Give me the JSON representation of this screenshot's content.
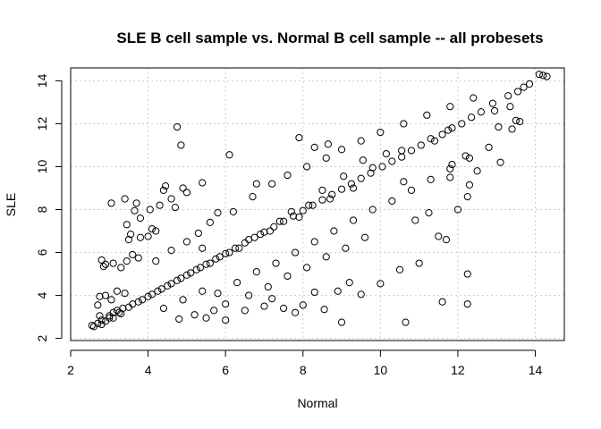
{
  "chart_data": {
    "type": "scatter",
    "title": "SLE B cell sample vs. Normal B cell sample -- all probesets",
    "xlabel": "Normal",
    "ylabel": "SLE",
    "xlim": [
      2.0,
      14.75
    ],
    "ylim": [
      1.9,
      14.6
    ],
    "xticks": [
      2,
      4,
      6,
      8,
      10,
      12,
      14
    ],
    "yticks": [
      2,
      4,
      6,
      8,
      10,
      12,
      14
    ],
    "grid": true,
    "marker": "open-circle",
    "point_color": "#000000",
    "grid_color": "#cccccc",
    "series": [
      {
        "points": [
          [
            2.55,
            2.6
          ],
          [
            2.6,
            2.55
          ],
          [
            2.7,
            2.7
          ],
          [
            2.8,
            2.65
          ],
          [
            2.75,
            3.05
          ],
          [
            2.9,
            2.8
          ],
          [
            3.0,
            3.05
          ],
          [
            3.1,
            2.95
          ],
          [
            3.2,
            3.3
          ],
          [
            3.3,
            3.15
          ],
          [
            2.7,
            3.55
          ],
          [
            2.75,
            3.95
          ],
          [
            2.9,
            4.0
          ],
          [
            3.05,
            3.8
          ],
          [
            3.2,
            4.2
          ],
          [
            3.4,
            4.1
          ],
          [
            3.3,
            5.3
          ],
          [
            3.45,
            5.6
          ],
          [
            3.1,
            5.5
          ],
          [
            2.9,
            5.45
          ],
          [
            2.8,
            5.65
          ],
          [
            2.85,
            5.35
          ],
          [
            3.6,
            5.9
          ],
          [
            3.75,
            5.75
          ],
          [
            3.5,
            6.6
          ],
          [
            3.55,
            6.85
          ],
          [
            3.8,
            6.7
          ],
          [
            4.0,
            6.75
          ],
          [
            4.1,
            7.1
          ],
          [
            4.2,
            7.0
          ],
          [
            3.05,
            8.3
          ],
          [
            3.45,
            7.3
          ],
          [
            3.65,
            7.95
          ],
          [
            3.8,
            7.6
          ],
          [
            4.05,
            8.0
          ],
          [
            4.3,
            8.2
          ],
          [
            4.45,
            9.1
          ],
          [
            4.4,
            8.9
          ],
          [
            4.9,
            9.0
          ],
          [
            5.0,
            8.8
          ],
          [
            5.4,
            9.25
          ],
          [
            4.75,
            11.85
          ],
          [
            4.85,
            11.0
          ],
          [
            5.8,
            7.85
          ],
          [
            6.1,
            10.55
          ],
          [
            6.8,
            9.2
          ],
          [
            7.9,
            11.35
          ],
          [
            8.3,
            10.9
          ],
          [
            8.65,
            11.05
          ],
          [
            3.4,
            8.5
          ],
          [
            3.7,
            8.3
          ],
          [
            4.6,
            8.5
          ],
          [
            4.7,
            8.1
          ],
          [
            5.7,
            3.3
          ],
          [
            5.2,
            3.1
          ],
          [
            4.8,
            2.9
          ],
          [
            5.5,
            2.95
          ],
          [
            6.0,
            2.85
          ],
          [
            6.5,
            3.3
          ],
          [
            7.0,
            3.5
          ],
          [
            7.5,
            3.4
          ],
          [
            7.2,
            3.85
          ],
          [
            7.8,
            3.2
          ],
          [
            8.0,
            3.55
          ],
          [
            8.55,
            3.35
          ],
          [
            8.3,
            4.15
          ],
          [
            8.9,
            4.2
          ],
          [
            9.0,
            2.75
          ],
          [
            9.5,
            4.05
          ],
          [
            9.2,
            4.6
          ],
          [
            10.0,
            4.55
          ],
          [
            10.65,
            2.75
          ],
          [
            10.5,
            5.2
          ],
          [
            11.0,
            5.5
          ],
          [
            11.6,
            3.7
          ],
          [
            12.25,
            3.6
          ],
          [
            12.25,
            5.0
          ],
          [
            11.5,
            6.75
          ],
          [
            10.9,
            7.5
          ],
          [
            11.7,
            6.6
          ],
          [
            11.25,
            7.85
          ],
          [
            12.0,
            8.0
          ],
          [
            11.8,
            9.5
          ],
          [
            12.25,
            8.6
          ],
          [
            12.3,
            9.15
          ],
          [
            12.5,
            9.8
          ],
          [
            12.2,
            10.5
          ],
          [
            11.85,
            10.1
          ],
          [
            13.1,
            10.2
          ],
          [
            13.4,
            11.75
          ],
          [
            13.05,
            11.85
          ],
          [
            13.6,
            12.1
          ],
          [
            13.35,
            12.8
          ],
          [
            12.95,
            12.6
          ],
          [
            11.75,
            11.7
          ],
          [
            11.4,
            11.2
          ],
          [
            10.55,
            10.75
          ],
          [
            10.6,
            9.3
          ],
          [
            10.15,
            10.6
          ],
          [
            9.8,
            9.95
          ],
          [
            9.55,
            10.3
          ],
          [
            9.3,
            9.0
          ],
          [
            9.05,
            9.55
          ],
          [
            8.7,
            8.5
          ],
          [
            8.5,
            8.9
          ],
          [
            8.15,
            8.2
          ],
          [
            7.9,
            7.65
          ],
          [
            7.7,
            7.9
          ],
          [
            7.4,
            7.45
          ],
          [
            7.15,
            7.0
          ],
          [
            6.9,
            6.85
          ],
          [
            6.6,
            6.6
          ],
          [
            6.35,
            6.2
          ],
          [
            6.1,
            6.0
          ],
          [
            5.85,
            5.8
          ],
          [
            5.6,
            5.5
          ],
          [
            5.35,
            5.3
          ],
          [
            5.1,
            5.05
          ],
          [
            4.85,
            4.8
          ],
          [
            4.6,
            4.55
          ],
          [
            4.35,
            4.3
          ],
          [
            4.1,
            4.05
          ],
          [
            3.85,
            3.8
          ],
          [
            3.6,
            3.6
          ],
          [
            3.35,
            3.4
          ],
          [
            3.1,
            3.2
          ],
          [
            13.7,
            13.7
          ],
          [
            13.85,
            13.85
          ],
          [
            13.55,
            13.5
          ],
          [
            13.3,
            13.3
          ],
          [
            14.2,
            14.25
          ],
          [
            14.3,
            14.2
          ],
          [
            14.1,
            14.3
          ],
          [
            13.5,
            12.15
          ],
          [
            12.9,
            12.95
          ],
          [
            12.6,
            12.55
          ],
          [
            12.35,
            12.3
          ],
          [
            12.1,
            12.0
          ],
          [
            11.85,
            11.8
          ],
          [
            11.6,
            11.5
          ],
          [
            11.3,
            11.3
          ],
          [
            11.05,
            11.0
          ],
          [
            10.8,
            10.75
          ],
          [
            10.55,
            10.45
          ],
          [
            10.3,
            10.25
          ],
          [
            10.05,
            10.0
          ],
          [
            9.75,
            9.7
          ],
          [
            9.5,
            9.45
          ],
          [
            9.25,
            9.2
          ],
          [
            9.0,
            8.95
          ],
          [
            8.75,
            8.7
          ],
          [
            8.5,
            8.45
          ],
          [
            8.25,
            8.2
          ],
          [
            8.0,
            7.95
          ],
          [
            7.75,
            7.7
          ],
          [
            7.5,
            7.45
          ],
          [
            7.25,
            7.2
          ],
          [
            7.0,
            6.95
          ],
          [
            6.75,
            6.7
          ],
          [
            6.5,
            6.45
          ],
          [
            6.25,
            6.2
          ],
          [
            6.0,
            5.95
          ],
          [
            5.75,
            5.7
          ],
          [
            5.5,
            5.45
          ],
          [
            5.25,
            5.2
          ],
          [
            5.0,
            4.95
          ],
          [
            4.75,
            4.7
          ],
          [
            4.5,
            4.45
          ],
          [
            4.25,
            4.2
          ],
          [
            4.0,
            3.95
          ],
          [
            3.75,
            3.7
          ],
          [
            3.5,
            3.45
          ],
          [
            3.25,
            3.2
          ],
          [
            3.0,
            2.95
          ],
          [
            2.8,
            2.85
          ],
          [
            5.3,
            6.9
          ],
          [
            5.6,
            7.4
          ],
          [
            6.2,
            7.9
          ],
          [
            6.7,
            8.6
          ],
          [
            7.2,
            9.2
          ],
          [
            7.6,
            9.6
          ],
          [
            8.1,
            10.0
          ],
          [
            8.6,
            10.4
          ],
          [
            9.0,
            10.8
          ],
          [
            9.5,
            11.2
          ],
          [
            10.0,
            11.6
          ],
          [
            10.6,
            12.0
          ],
          [
            11.2,
            12.4
          ],
          [
            11.8,
            12.8
          ],
          [
            12.4,
            13.2
          ],
          [
            5.8,
            4.1
          ],
          [
            6.3,
            4.6
          ],
          [
            6.8,
            5.1
          ],
          [
            7.3,
            5.5
          ],
          [
            7.8,
            6.0
          ],
          [
            8.3,
            6.5
          ],
          [
            8.8,
            7.0
          ],
          [
            9.3,
            7.5
          ],
          [
            9.8,
            8.0
          ],
          [
            10.3,
            8.4
          ],
          [
            10.8,
            8.9
          ],
          [
            11.3,
            9.4
          ],
          [
            11.8,
            9.9
          ],
          [
            12.3,
            10.4
          ],
          [
            12.8,
            10.9
          ],
          [
            4.2,
            5.6
          ],
          [
            4.6,
            6.1
          ],
          [
            5.0,
            6.5
          ],
          [
            5.4,
            6.2
          ],
          [
            4.4,
            3.4
          ],
          [
            4.9,
            3.8
          ],
          [
            5.4,
            4.2
          ],
          [
            6.0,
            3.6
          ],
          [
            6.6,
            4.0
          ],
          [
            7.1,
            4.4
          ],
          [
            7.6,
            4.9
          ],
          [
            8.1,
            5.3
          ],
          [
            8.6,
            5.8
          ],
          [
            9.1,
            6.2
          ],
          [
            9.6,
            6.7
          ]
        ]
      }
    ]
  }
}
